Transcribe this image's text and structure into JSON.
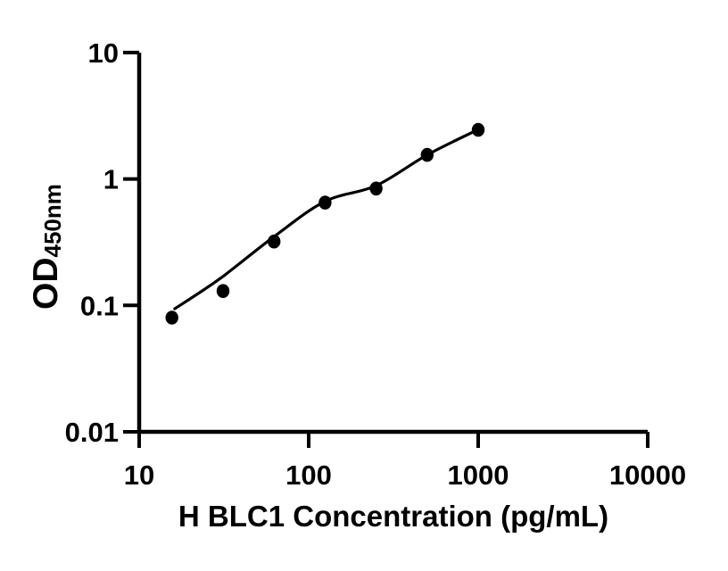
{
  "figure": {
    "background_color": "#ffffff",
    "axis_color": "#000000",
    "text_color": "#000000"
  },
  "chart_data": {
    "type": "scatter",
    "title": "",
    "xlabel": "H BLC1 Concentration (pg/mL)",
    "ylabel_main": "OD",
    "ylabel_subscript": "450nm",
    "x_scale": "log10",
    "y_scale": "log10",
    "xlim": [
      10,
      10000
    ],
    "ylim": [
      0.01,
      10
    ],
    "x_ticks": [
      {
        "value": 10,
        "label": "10"
      },
      {
        "value": 100,
        "label": "100"
      },
      {
        "value": 1000,
        "label": "1000"
      },
      {
        "value": 10000,
        "label": "10000"
      }
    ],
    "y_ticks": [
      {
        "value": 0.01,
        "label": "0.01"
      },
      {
        "value": 0.1,
        "label": "0.1"
      },
      {
        "value": 1,
        "label": "1"
      },
      {
        "value": 10,
        "label": "10"
      }
    ],
    "grid": false,
    "legend": null,
    "series": [
      {
        "name": "standard-curve-points",
        "marker": "filled-circle",
        "marker_color": "#000000",
        "points": [
          {
            "x": 15.6,
            "y": 0.08
          },
          {
            "x": 31.25,
            "y": 0.13
          },
          {
            "x": 62.5,
            "y": 0.32
          },
          {
            "x": 125,
            "y": 0.65
          },
          {
            "x": 250,
            "y": 0.84
          },
          {
            "x": 500,
            "y": 1.55
          },
          {
            "x": 1000,
            "y": 2.45
          }
        ]
      }
    ],
    "fit_curve": {
      "color": "#000000",
      "points": [
        {
          "x": 16.2,
          "y": 0.094
        },
        {
          "x": 30,
          "y": 0.163
        },
        {
          "x": 62.5,
          "y": 0.35
        },
        {
          "x": 125,
          "y": 0.665
        },
        {
          "x": 250,
          "y": 0.885
        },
        {
          "x": 500,
          "y": 1.55
        },
        {
          "x": 1000,
          "y": 2.46
        }
      ]
    }
  }
}
